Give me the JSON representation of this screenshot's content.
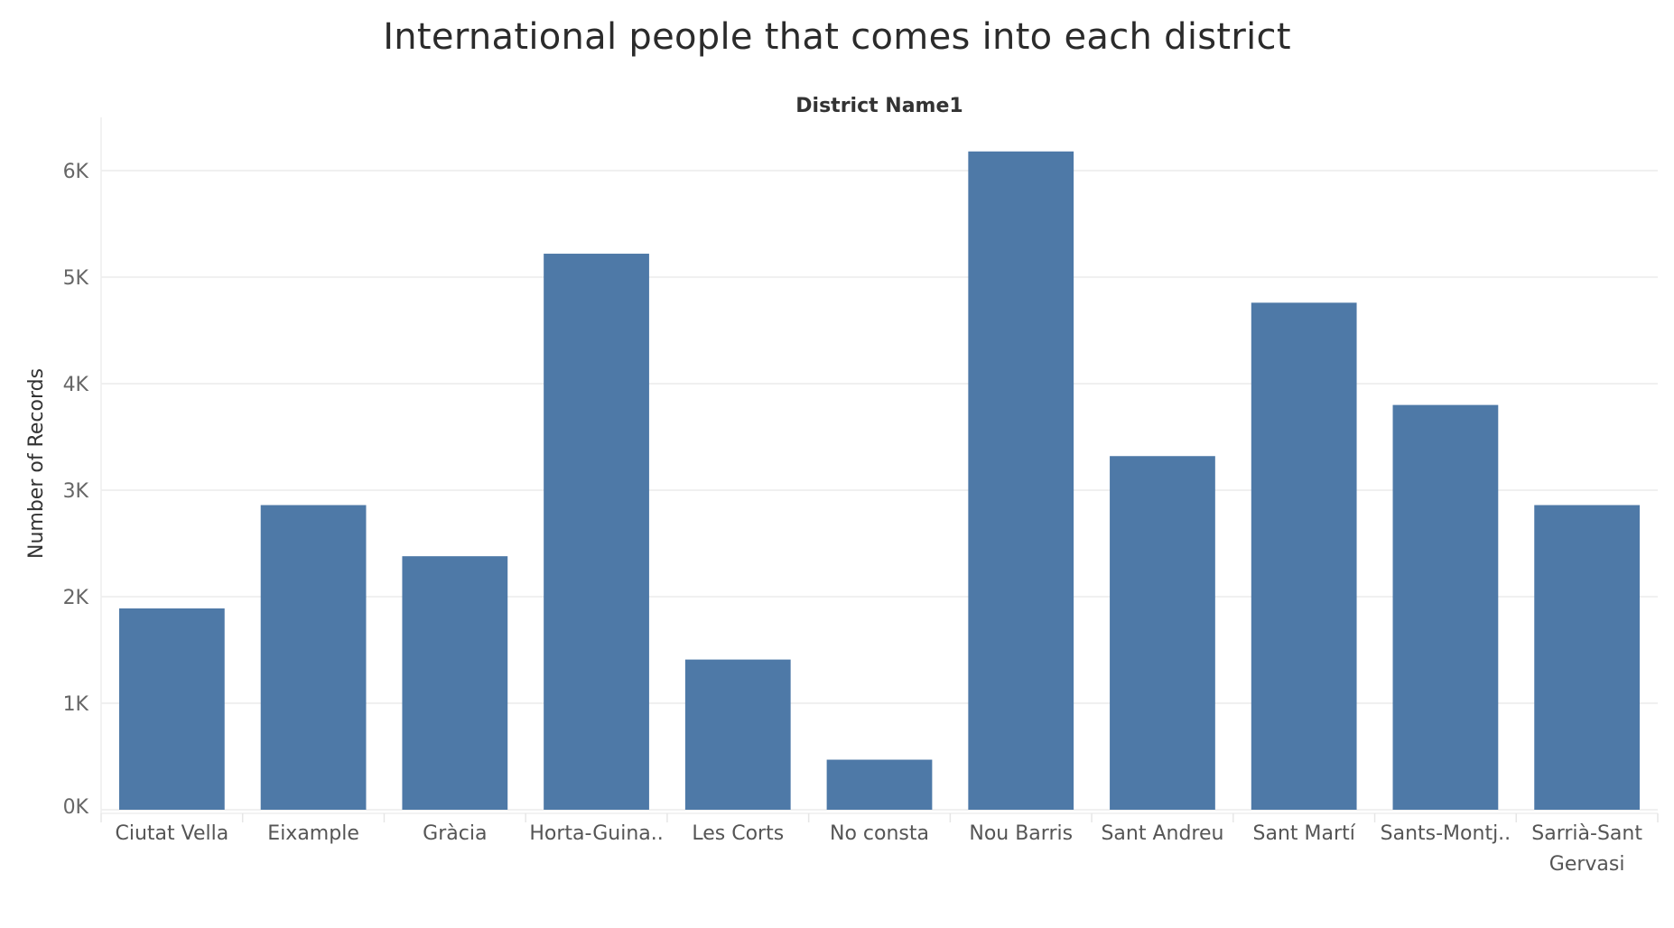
{
  "chart_data": {
    "type": "bar",
    "title": "International people that comes into each district",
    "column_header": "District Name1",
    "ylabel": "Number of Records",
    "xlabel": "",
    "categories": [
      [
        "Ciutat Vella"
      ],
      [
        "Eixample"
      ],
      [
        "Gràcia"
      ],
      [
        "Horta-Guina.."
      ],
      [
        "Les Corts"
      ],
      [
        "No consta"
      ],
      [
        "Nou Barris"
      ],
      [
        "Sant Andreu"
      ],
      [
        "Sant Martí"
      ],
      [
        "Sants-Montj.."
      ],
      [
        "Sarrià-Sant",
        "Gervasi"
      ]
    ],
    "values": [
      1890,
      2860,
      2380,
      5220,
      1410,
      470,
      6180,
      3320,
      4760,
      3800,
      2860
    ],
    "ylim": [
      0,
      6500
    ],
    "yticks": [
      0,
      1000,
      2000,
      3000,
      4000,
      5000,
      6000
    ],
    "ytick_labels": [
      "0K",
      "1K",
      "2K",
      "3K",
      "4K",
      "5K",
      "6K"
    ],
    "grid": true,
    "bar_color": "#4e79a7"
  }
}
